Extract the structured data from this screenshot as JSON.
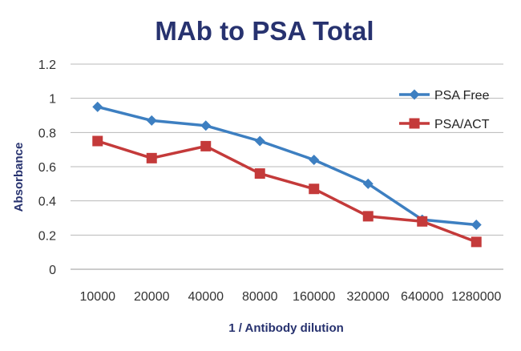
{
  "chart_data": {
    "type": "line",
    "title": "MAb to PSA Total",
    "xlabel": "1 / Antibody dilution",
    "ylabel": "Absorbance",
    "categories": [
      "10000",
      "20000",
      "40000",
      "80000",
      "160000",
      "320000",
      "640000",
      "1280000"
    ],
    "ylim": [
      0,
      1.2
    ],
    "yticks": [
      "0",
      "0.2",
      "0.4",
      "0.6",
      "0.8",
      "1",
      "1.2"
    ],
    "grid": true,
    "legend_position": "right",
    "series": [
      {
        "name": "PSA Free",
        "values": [
          0.95,
          0.87,
          0.84,
          0.75,
          0.64,
          0.5,
          0.29,
          0.26
        ],
        "color": "#3d7fc1",
        "marker": "diamond"
      },
      {
        "name": "PSA/ACT",
        "values": [
          0.75,
          0.65,
          0.72,
          0.56,
          0.47,
          0.31,
          0.28,
          0.16
        ],
        "color": "#c43a3a",
        "marker": "square"
      }
    ],
    "title_color": "#27326f",
    "label_color": "#27326f"
  }
}
